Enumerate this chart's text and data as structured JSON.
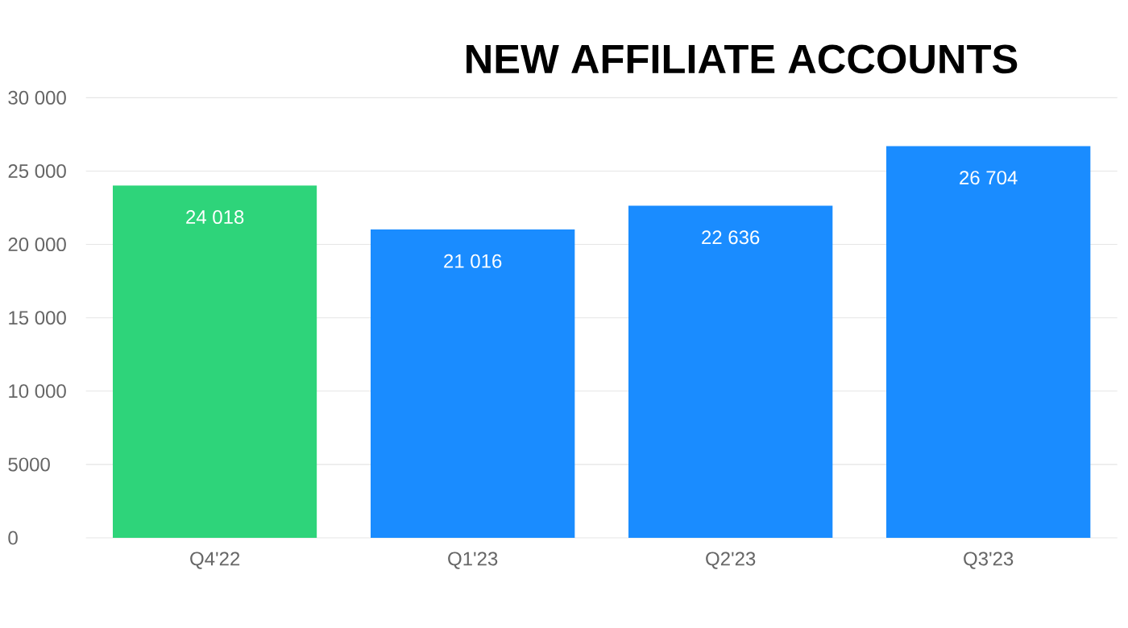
{
  "chart_data": {
    "type": "bar",
    "title": "NEW AFFILIATE ACCOUNTS",
    "categories": [
      "Q4'22",
      "Q1'23",
      "Q2'23",
      "Q3'23"
    ],
    "values": [
      24018,
      21016,
      22636,
      26704
    ],
    "value_labels": [
      "24 018",
      "21 016",
      "22 636",
      "26 704"
    ],
    "colors": [
      "#2ed47a",
      "#1a8cff",
      "#1a8cff",
      "#1a8cff"
    ],
    "ylim": [
      0,
      30000
    ],
    "yticks": [
      0,
      {
        "value": 5000,
        "label": "5000"
      },
      {
        "value": 10000,
        "label": "10 000"
      },
      {
        "value": 15000,
        "label": "15 000"
      },
      {
        "value": 20000,
        "label": "20 000"
      },
      {
        "value": 25000,
        "label": "25 000"
      },
      {
        "value": 30000,
        "label": "30 000"
      }
    ],
    "grid": "y"
  }
}
